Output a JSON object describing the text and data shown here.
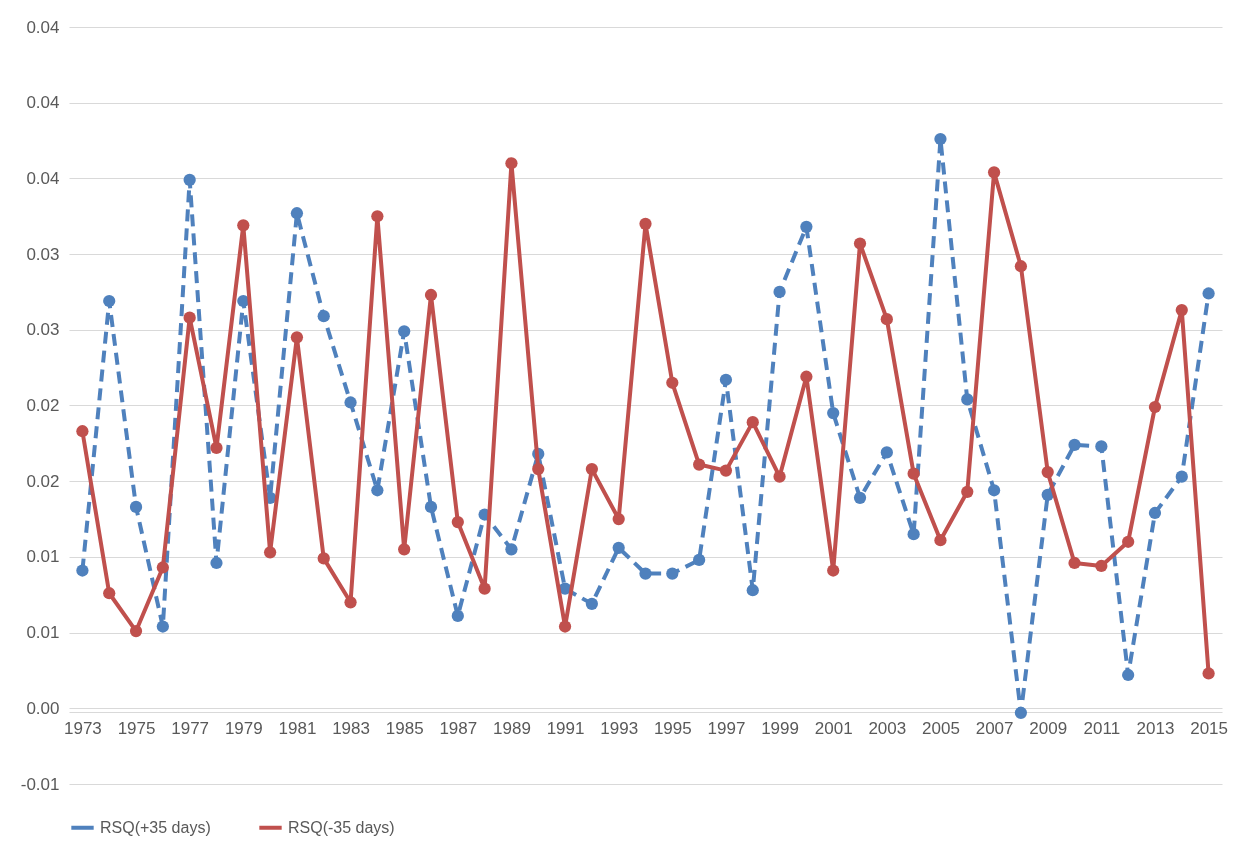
{
  "chart_data": {
    "type": "line",
    "categories": [
      "1973",
      null,
      "1975",
      null,
      "1977",
      null,
      "1979",
      null,
      "1981",
      null,
      "1983",
      null,
      "1985",
      null,
      "1987",
      null,
      "1989",
      null,
      "1991",
      null,
      "1993",
      null,
      "1995",
      null,
      "1997",
      null,
      "1999",
      null,
      "2001",
      null,
      "2003",
      null,
      "2005",
      null,
      "2007",
      null,
      "2009",
      null,
      "2011",
      null,
      "2013",
      null,
      "2015"
    ],
    "series": [
      {
        "name": "RSQ(+35 days)",
        "color": "#4f81bd",
        "line_style": "dashed",
        "values": [
          0.0091,
          0.0269,
          0.0133,
          0.0054,
          0.0349,
          0.0096,
          0.0269,
          0.0139,
          0.0327,
          0.0259,
          0.0202,
          0.0144,
          0.0249,
          0.0133,
          0.0061,
          0.0128,
          0.0105,
          0.0168,
          0.0079,
          0.0069,
          0.0106,
          0.0089,
          0.0089,
          0.0098,
          0.0217,
          0.0078,
          0.0275,
          0.0318,
          0.0195,
          0.0139,
          0.0169,
          0.0115,
          0.0376,
          0.0204,
          0.0144,
          -0.0003,
          0.0141,
          0.0174,
          0.0173,
          0.0022,
          0.0129,
          0.0153,
          0.0274
        ]
      },
      {
        "name": "RSQ(-35 days)",
        "color": "#c0504d",
        "line_style": "solid",
        "values": [
          0.0183,
          0.0076,
          0.0051,
          0.0093,
          0.0258,
          0.0172,
          0.0319,
          0.0103,
          0.0245,
          0.0099,
          0.007,
          0.0325,
          0.0105,
          0.0273,
          0.0123,
          0.0079,
          0.036,
          0.0158,
          0.0054,
          0.0158,
          0.0125,
          0.032,
          0.0215,
          0.0161,
          0.0157,
          0.0189,
          0.0153,
          0.0219,
          0.0091,
          0.0307,
          0.0257,
          0.0155,
          0.0111,
          0.0143,
          0.0354,
          0.0292,
          0.0156,
          0.0096,
          0.0094,
          0.011,
          0.0199,
          0.0263,
          0.0023
        ]
      }
    ],
    "ylim": [
      -0.005,
      0.045
    ],
    "yticks": [
      {
        "value": -0.005,
        "label": "-0.01"
      },
      {
        "value": 0,
        "label": "0.00"
      },
      {
        "value": 0.005,
        "label": "0.01"
      },
      {
        "value": 0.01,
        "label": "0.01"
      },
      {
        "value": 0.015,
        "label": "0.02"
      },
      {
        "value": 0.02,
        "label": "0.02"
      },
      {
        "value": 0.025,
        "label": "0.03"
      },
      {
        "value": 0.03,
        "label": "0.03"
      },
      {
        "value": 0.035,
        "label": "0.04"
      },
      {
        "value": 0.04,
        "label": "0.04"
      },
      {
        "value": 0.045,
        "label": "0.04"
      }
    ],
    "grid": "y",
    "legend": "bottom",
    "marker": "circle"
  }
}
